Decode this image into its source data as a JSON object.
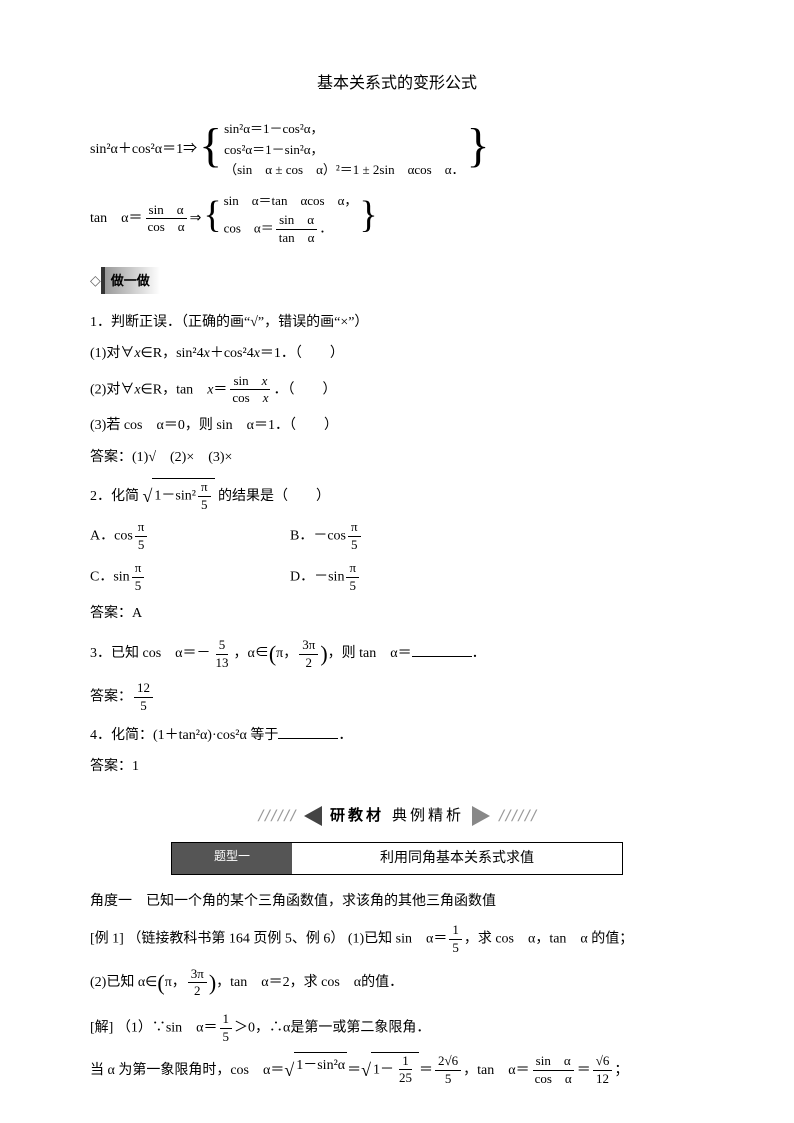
{
  "title": "基本关系式的变形公式",
  "formulas": {
    "f1_left": "sin²α＋cos²α＝1⇒",
    "f1_line1": "sin²α＝1－cos²α，",
    "f1_line2": "cos²α＝1－sin²α，",
    "f1_line3": "（sin　α ± cos　α）²＝1 ± 2sin　αcos　α．",
    "f2_left_pre": "tan　α＝",
    "f2_left_num": "sin　α",
    "f2_left_den": "cos　α",
    "f2_arrow": "⇒",
    "f2_line1": "sin　α＝tan　αcos　α，",
    "f2_line2_pre": "cos　α＝",
    "f2_line2_num": "sin　α",
    "f2_line2_den": "tan　α",
    "f2_line2_post": "．"
  },
  "do_label": "做一做",
  "q1": {
    "stem": "1．判断正误．（正确的画“√”，错误的画“×”）",
    "s1_pre": "(1)对∀",
    "s1_x": "x",
    "s1_mid1": "∈R，sin²4",
    "s1_mid2": "＋cos²4",
    "s1_post": "＝1．（　　）",
    "s2_pre": "(2)对∀",
    "s2_mid": "∈R，tan　",
    "s2_eq": "＝",
    "s2_num_pre": "sin　",
    "s2_den_pre": "cos　",
    "s2_post": "．（　　）",
    "s3": "(3)若 cos　α＝0，则 sin　α＝1．（　　）",
    "ans": "答案：(1)√　(2)×　(3)×"
  },
  "q2": {
    "stem_pre": "2．化简",
    "sqrt_pre": "1－sin²",
    "sqrt_num": "π",
    "sqrt_den": "5",
    "stem_post": "的结果是（　　）",
    "optA_pre": "A．cos",
    "optB_pre": "B．－cos",
    "optC_pre": "C．sin",
    "optD_pre": "D．－sin",
    "frac_num": "π",
    "frac_den": "5",
    "ans": "答案：A"
  },
  "q3": {
    "stem_pre": "3．已知 cos　α＝－",
    "f1_num": "5",
    "f1_den": "13",
    "mid1": "，α∈",
    "paren_l": "(",
    "paren_content_1": "π，",
    "f2_num": "3π",
    "f2_den": "2",
    "paren_r": ")",
    "mid2": "，则 tan　α＝",
    "post": "．",
    "ans_pre": "答案：",
    "ans_num": "12",
    "ans_den": "5"
  },
  "q4": {
    "stem": "4．化简：(1＋tan²α)·cos²α 等于",
    "post": "．",
    "ans": "答案：1"
  },
  "banner": {
    "left_stripes": "//////",
    "text1": "研教材",
    "text2": "典例精析",
    "right_stripes": "//////"
  },
  "topic": {
    "left": "题型一",
    "right": "利用同角基本关系式求值"
  },
  "angle1": "角度一　已知一个角的某个三角函数值，求该角的其他三角函数值",
  "ex1": {
    "label": "[例 1]",
    "ref": "（链接教科书第 164 页例 5、例 6）",
    "p1_pre": "(1)已知 sin　α＝",
    "p1_num": "1",
    "p1_den": "5",
    "p1_post": "，求 cos　α，tan　α 的值；",
    "p2_pre": "(2)已知 α∈",
    "p2_paren_l": "(",
    "p2_c1": "π，",
    "p2_num": "3π",
    "p2_den": "2",
    "p2_paren_r": ")",
    "p2_mid": "，tan　α＝2，求 cos　α的值．"
  },
  "sol": {
    "label": "[解]",
    "s1_pre": "（1）∵sin　α＝",
    "s1_num": "1",
    "s1_den": "5",
    "s1_mid": "＞0，∴α是第一或第二象限角．",
    "s2_pre": "当 α 为第一象限角时，cos　α＝",
    "s2_sqrt1": "1－sin²α",
    "s2_eq1": "＝",
    "s2_sqrt2_pre": "1－",
    "s2_sqrt2_num": "1",
    "s2_sqrt2_den": "25",
    "s2_eq2": "＝",
    "s2_r_num": "2√6",
    "s2_r_den": "5",
    "s2_mid": "，tan　α＝",
    "s2_t_num": "sin　α",
    "s2_t_den": "cos　α",
    "s2_eq3": "＝",
    "s2_f_num": "√6",
    "s2_f_den": "12",
    "s2_post": "；"
  }
}
